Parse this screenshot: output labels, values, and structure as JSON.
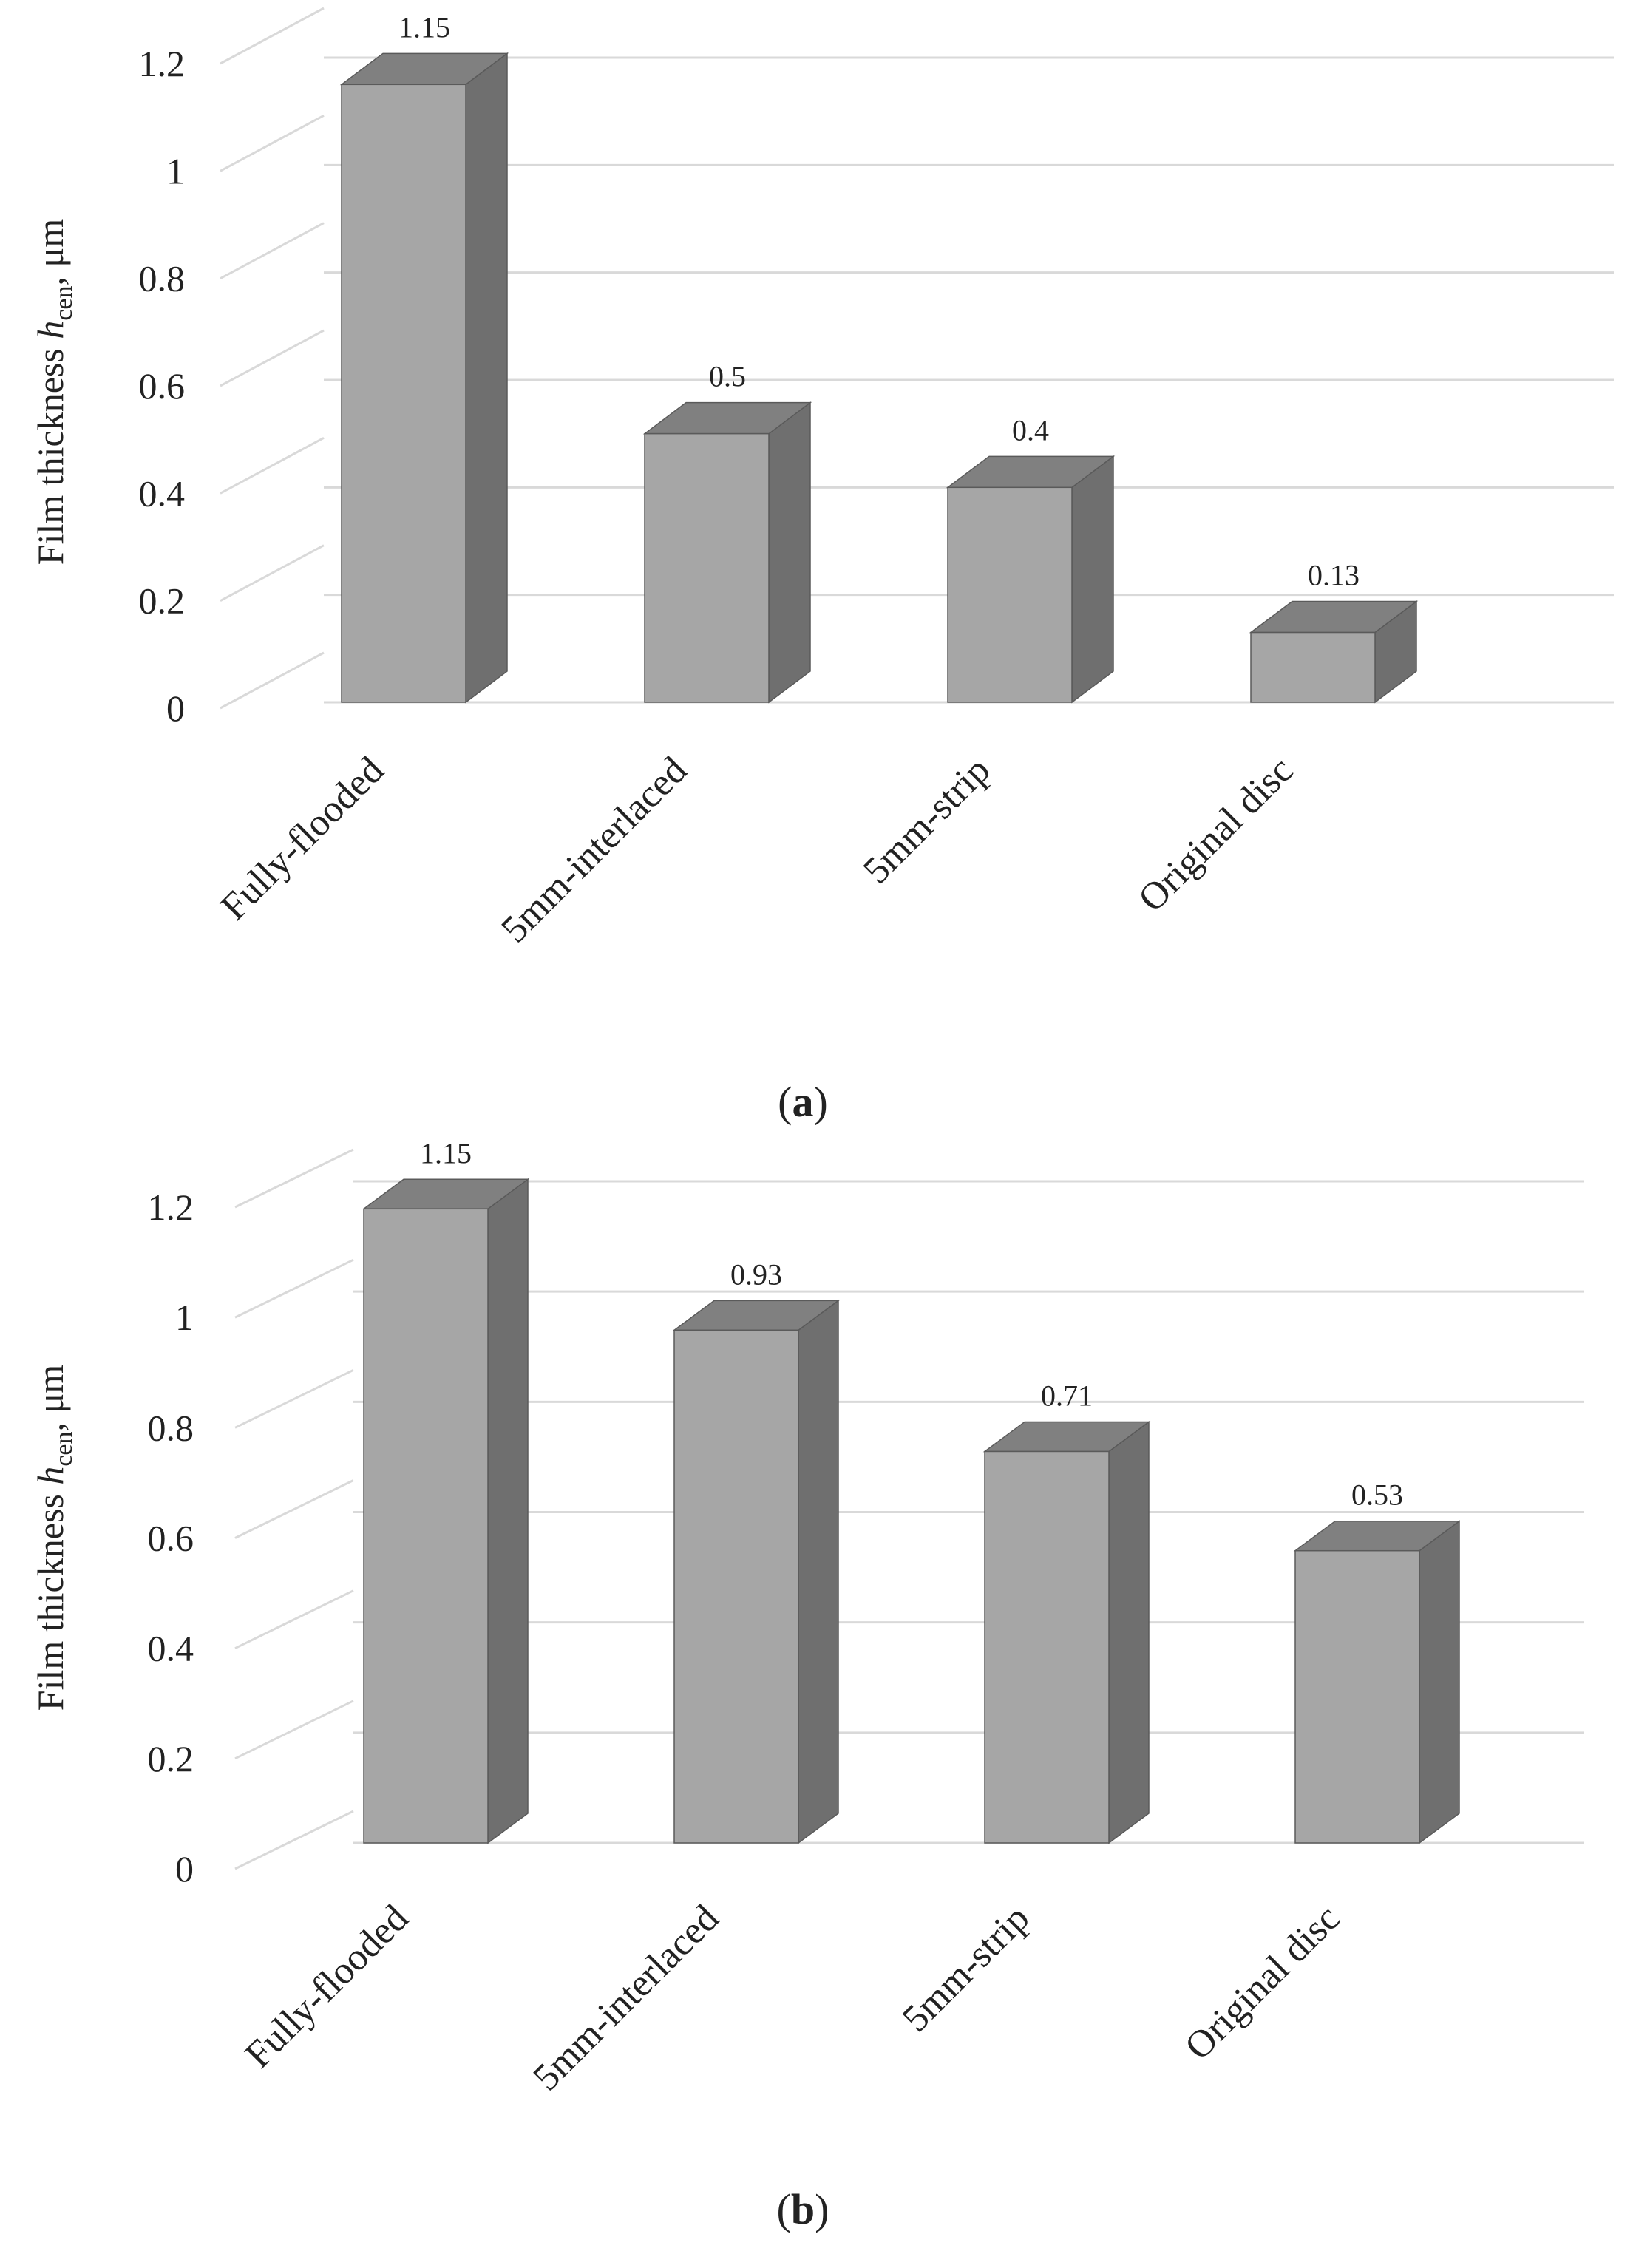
{
  "colors": {
    "bar_front": "#a6a6a6",
    "bar_side": "#6f6f6f",
    "bar_top": "#808080",
    "bar_edge": "#5a5a5a",
    "grid": "#d9d9d9",
    "text": "#222222"
  },
  "chart_data": [
    {
      "id": "a",
      "type": "bar",
      "style": "3d-column",
      "caption": {
        "open": "(",
        "letter": "a",
        "close": ")"
      },
      "ylabel": {
        "pre": "Film thickness ",
        "var": "h",
        "sub": "cen",
        "post": ", μm"
      },
      "ylim": [
        0,
        1.2
      ],
      "ytick_values": [
        0,
        0.2,
        0.4,
        0.6,
        0.8,
        1,
        1.2
      ],
      "ytick_labels": [
        "0",
        "0.2",
        "0.4",
        "0.6",
        "0.8",
        "1",
        "1.2"
      ],
      "categories": [
        "Fully-flooded",
        "5mm-interlaced",
        "5mm-strip",
        "Original disc"
      ],
      "values": [
        1.15,
        0.5,
        0.4,
        0.13
      ],
      "data_labels": [
        "1.15",
        "0.5",
        "0.4",
        "0.13"
      ],
      "grid": true
    },
    {
      "id": "b",
      "type": "bar",
      "style": "3d-column",
      "caption": {
        "open": "(",
        "letter": "b",
        "close": ")"
      },
      "ylabel": {
        "pre": "Film thickness ",
        "var": "h",
        "sub": "cen",
        "post": ", μm"
      },
      "ylim": [
        0,
        1.2
      ],
      "ytick_values": [
        0,
        0.2,
        0.4,
        0.6,
        0.8,
        1,
        1.2
      ],
      "ytick_labels": [
        "0",
        "0.2",
        "0.4",
        "0.6",
        "0.8",
        "1",
        "1.2"
      ],
      "categories": [
        "Fully-flooded",
        "5mm-interlaced",
        "5mm-strip",
        "Original disc"
      ],
      "values": [
        1.15,
        0.93,
        0.71,
        0.53
      ],
      "data_labels": [
        "1.15",
        "0.93",
        "0.71",
        "0.53"
      ],
      "grid": true
    }
  ]
}
